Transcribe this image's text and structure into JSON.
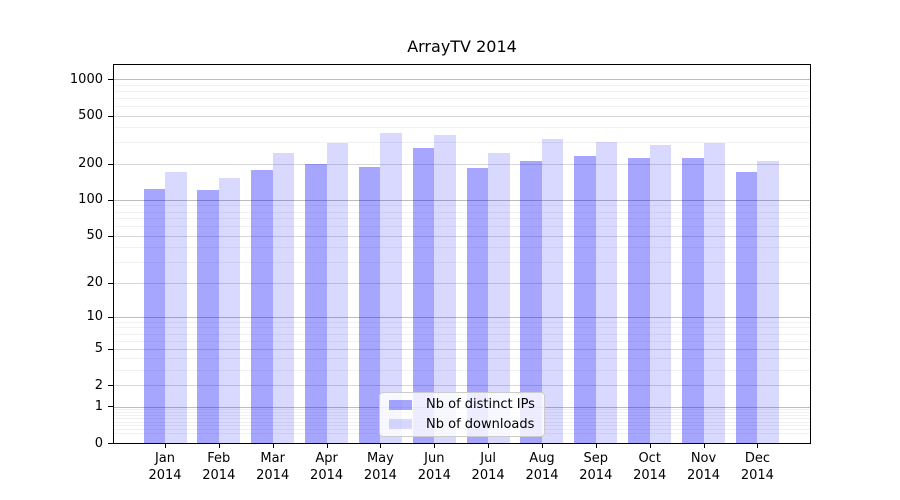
{
  "chart_data": {
    "type": "bar",
    "title": "ArrayTV 2014",
    "year_label": "2014",
    "categories": [
      "Jan",
      "Feb",
      "Mar",
      "Apr",
      "May",
      "Jun",
      "Jul",
      "Aug",
      "Sep",
      "Oct",
      "Nov",
      "Dec"
    ],
    "series": [
      {
        "name": "Nb of distinct IPs",
        "color": "#0000ff",
        "alpha": 0.35,
        "effective_hex": "#a6a6ff",
        "values": [
          124,
          122,
          176,
          200,
          187,
          270,
          185,
          212,
          230,
          221,
          221,
          170
        ]
      },
      {
        "name": "Nb of downloads",
        "color": "#0000ff",
        "alpha": 0.15,
        "effective_hex": "#d9d9ff",
        "values": [
          172,
          152,
          246,
          295,
          360,
          346,
          246,
          320,
          305,
          285,
          298,
          212
        ]
      }
    ],
    "y_axis": {
      "scale": "log1p",
      "ticks": [
        1000,
        500,
        200,
        100,
        50,
        20,
        10,
        5,
        2,
        1,
        0
      ],
      "range": [
        0,
        1320
      ],
      "grid": "major-and-minor"
    },
    "legend": {
      "position": "inside-bottom-center"
    }
  }
}
